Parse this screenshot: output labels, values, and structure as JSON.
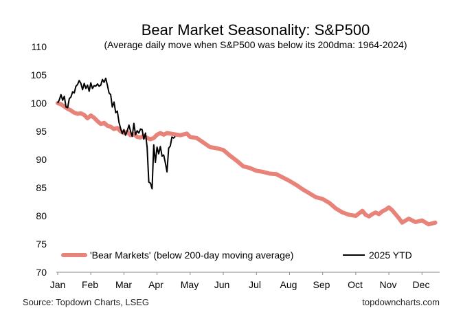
{
  "chart_data": {
    "type": "line",
    "title": "Bear Market Seasonality: S&P500",
    "subtitle": "(Average daily move when S&P500 was below its 200dma: 1964-2024)",
    "xlabel": "",
    "ylabel": "",
    "ylim": [
      70,
      110
    ],
    "yticks": [
      "110",
      "105",
      "100",
      "95",
      "90",
      "85",
      "80",
      "75",
      "70"
    ],
    "ytick_values": [
      110,
      105,
      100,
      95,
      90,
      85,
      80,
      75,
      70
    ],
    "xlim": [
      0,
      11.45
    ],
    "months": [
      "Jan",
      "Feb",
      "Mar",
      "Apr",
      "May",
      "Jun",
      "Jul",
      "Aug",
      "Sep",
      "Oct",
      "Nov",
      "Dec"
    ],
    "grid": false,
    "legend_position": "bottom",
    "series": [
      {
        "name": "'Bear Markets' (below 200-day moving average)",
        "color": "#e8837a",
        "x": [
          0,
          0.1,
          0.2,
          0.3,
          0.4,
          0.5,
          0.6,
          0.7,
          0.8,
          0.9,
          1.0,
          1.1,
          1.2,
          1.3,
          1.4,
          1.5,
          1.6,
          1.7,
          1.8,
          1.9,
          2.0,
          2.1,
          2.2,
          2.3,
          2.4,
          2.5,
          2.6,
          2.7,
          2.8,
          2.9,
          3.0,
          3.1,
          3.2,
          3.3,
          3.5,
          3.7,
          3.9,
          4.0,
          4.2,
          4.4,
          4.5,
          4.6,
          4.8,
          5.0,
          5.2,
          5.4,
          5.6,
          5.8,
          6.0,
          6.2,
          6.4,
          6.6,
          6.8,
          7.0,
          7.2,
          7.4,
          7.6,
          7.8,
          8.0,
          8.2,
          8.4,
          8.6,
          8.8,
          9.0,
          9.2,
          9.3,
          9.4,
          9.5,
          9.6,
          9.7,
          9.8,
          9.9,
          10.0,
          10.1,
          10.2,
          10.3,
          10.4,
          10.6,
          10.8,
          11.0,
          11.2,
          11.4
        ],
        "values": [
          100.0,
          99.8,
          99.4,
          99.0,
          98.7,
          98.3,
          98.1,
          98.2,
          97.9,
          97.3,
          97.8,
          97.4,
          96.8,
          96.3,
          96.5,
          96.0,
          95.8,
          95.4,
          95.6,
          95.0,
          94.7,
          94.9,
          94.3,
          94.5,
          94.0,
          93.9,
          94.2,
          93.8,
          93.6,
          93.8,
          94.4,
          94.7,
          94.4,
          94.7,
          94.5,
          94.3,
          94.6,
          94.0,
          93.8,
          93.0,
          92.6,
          92.2,
          92.0,
          91.7,
          90.7,
          89.8,
          88.8,
          88.5,
          88.0,
          87.8,
          87.5,
          87.4,
          86.8,
          86.2,
          85.5,
          84.7,
          84.0,
          83.3,
          83.0,
          82.3,
          81.3,
          80.6,
          80.2,
          80.0,
          80.9,
          80.2,
          79.9,
          80.3,
          80.6,
          80.3,
          80.8,
          81.1,
          81.5,
          81.0,
          80.3,
          79.6,
          78.8,
          79.5,
          78.9,
          79.2,
          78.5,
          78.8
        ]
      },
      {
        "name": "2025 YTD",
        "color": "#000000",
        "x": [
          0,
          0.05,
          0.1,
          0.15,
          0.2,
          0.25,
          0.3,
          0.35,
          0.4,
          0.45,
          0.5,
          0.55,
          0.6,
          0.65,
          0.7,
          0.75,
          0.8,
          0.85,
          0.9,
          0.95,
          1.0,
          1.05,
          1.1,
          1.15,
          1.2,
          1.25,
          1.3,
          1.35,
          1.4,
          1.45,
          1.5,
          1.55,
          1.6,
          1.65,
          1.7,
          1.75,
          1.8,
          1.85,
          1.9,
          1.95,
          2.0,
          2.05,
          2.1,
          2.15,
          2.2,
          2.25,
          2.3,
          2.35,
          2.4,
          2.45,
          2.5,
          2.55,
          2.6,
          2.65,
          2.7,
          2.75,
          2.8,
          2.85,
          2.9,
          2.95,
          3.0,
          3.05,
          3.1,
          3.15,
          3.2,
          3.25,
          3.3,
          3.35,
          3.4,
          3.45,
          3.5,
          3.55
        ],
        "values": [
          100.0,
          100.6,
          101.5,
          100.5,
          101.2,
          99.3,
          99.2,
          100.8,
          101.1,
          102.0,
          101.8,
          103.0,
          103.3,
          104.0,
          103.5,
          102.4,
          103.5,
          102.6,
          103.2,
          102.1,
          103.6,
          102.6,
          103.1,
          103.0,
          103.4,
          103.0,
          103.2,
          104.2,
          103.7,
          104.4,
          103.2,
          101.8,
          101.5,
          99.3,
          100.2,
          98.3,
          98.6,
          96.6,
          95.5,
          94.6,
          95.3,
          94.3,
          95.1,
          96.1,
          95.0,
          94.1,
          96.4,
          94.4,
          95.1,
          94.7,
          95.4,
          95.3,
          93.6,
          94.7,
          92.1,
          86.0,
          85.8,
          84.8,
          92.6,
          89.5,
          92.2,
          91.0,
          92.3,
          90.6,
          90.8,
          89.4,
          87.8,
          92.0,
          92.4,
          94.0,
          93.8,
          94.1
        ]
      }
    ]
  },
  "footer": {
    "source": "Source: Topdown Charts, LSEG",
    "brand": "topdowncharts.com"
  },
  "colors": {
    "bear": "#e8837a",
    "ytd": "#000000",
    "axis": "#888888"
  }
}
